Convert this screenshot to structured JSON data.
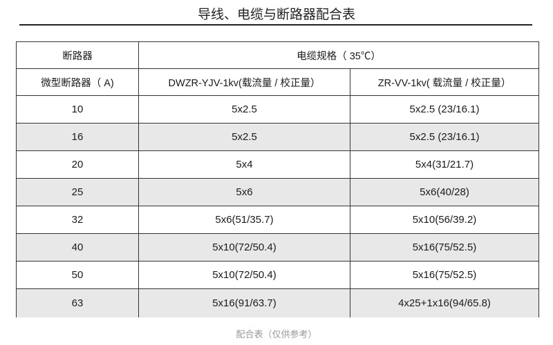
{
  "title": "导线、电缆与断路器配合表",
  "header": {
    "breaker": "断路器",
    "cable_spec": "电缆规格（ 35℃）",
    "mcb": "微型断路器（ A)",
    "col1": "DWZR-YJV-1kv(载流量 / 校正量）",
    "col2": "ZR-VV-1kv( 载流量 / 校正量）"
  },
  "rows": [
    {
      "a": "10",
      "c1": "5x2.5",
      "c2": "5x2.5 (23/16.1)",
      "shaded": false
    },
    {
      "a": "16",
      "c1": "5x2.5",
      "c2": "5x2.5 (23/16.1)",
      "shaded": true
    },
    {
      "a": "20",
      "c1": "5x4",
      "c2": "5x4(31/21.7)",
      "shaded": false
    },
    {
      "a": "25",
      "c1": "5x6",
      "c2": "5x6(40/28)",
      "shaded": true
    },
    {
      "a": "32",
      "c1": "5x6(51/35.7)",
      "c2": "5x10(56/39.2)",
      "shaded": false
    },
    {
      "a": "40",
      "c1": "5x10(72/50.4)",
      "c2": "5x16(75/52.5)",
      "shaded": true
    },
    {
      "a": "50",
      "c1": "5x10(72/50.4)",
      "c2": "5x16(75/52.5)",
      "shaded": false
    },
    {
      "a": "63",
      "c1": "5x16(91/63.7)",
      "c2": "4x25+1x16(94/65.8)",
      "shaded": true
    }
  ],
  "caption": "配合表（仅供参考）"
}
